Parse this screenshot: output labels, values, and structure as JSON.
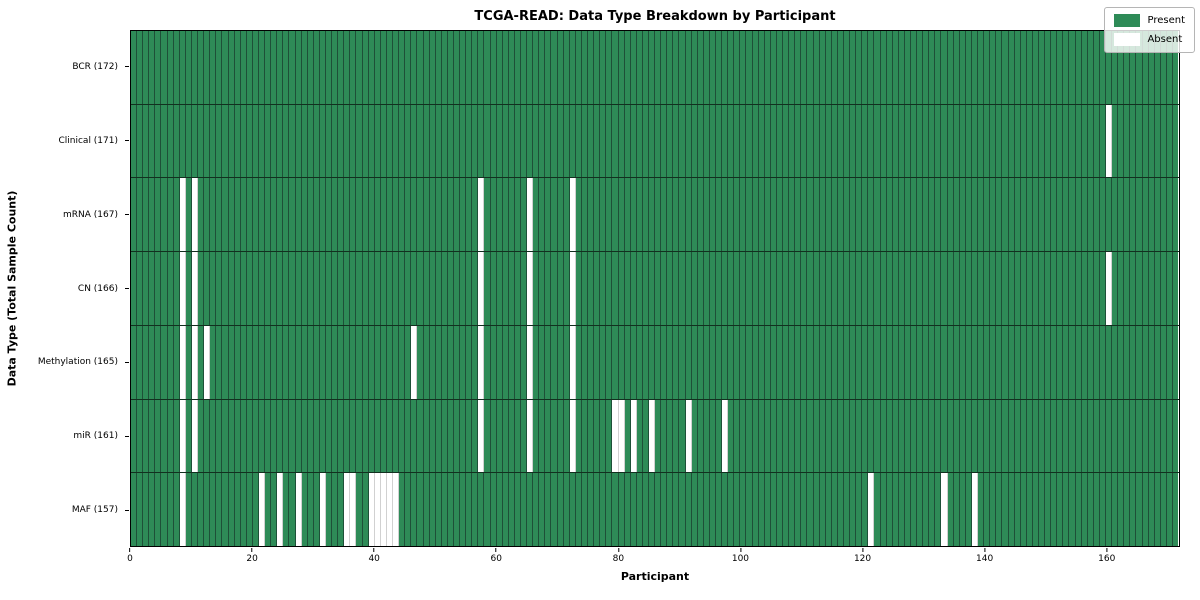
{
  "title": "TCGA-READ: Data Type Breakdown by Participant",
  "xlabel": "Participant",
  "ylabel": "Data Type (Total Sample Count)",
  "legend": {
    "present_label": "Present",
    "absent_label": "Absent"
  },
  "colors": {
    "present": "#2E8B57",
    "absent": "#FFFFFF",
    "cell_line": "#1E5038",
    "row_separator": "#12301F",
    "spine": "#000000",
    "background": "#FFFFFF",
    "legend_bg": "rgba(255,255,255,0.8)",
    "legend_border": "#B5B5B5",
    "text": "#000000"
  },
  "chart_data": {
    "type": "heatmap",
    "title": "TCGA-READ: Data Type Breakdown by Participant",
    "xlabel": "Participant",
    "ylabel": "Data Type (Total Sample Count)",
    "n_participants": 172,
    "x_range": [
      0,
      172
    ],
    "x_ticks": [
      0,
      20,
      40,
      60,
      80,
      100,
      120,
      140,
      160
    ],
    "legend_position": "upper right",
    "legend_entries": [
      "Present",
      "Absent"
    ],
    "grid": false,
    "rows": [
      {
        "label": "BCR (172)",
        "data_type": "BCR",
        "total_sample_count": 172,
        "absent_participants": []
      },
      {
        "label": "Clinical (171)",
        "data_type": "Clinical",
        "total_sample_count": 171,
        "absent_participants": [
          160
        ]
      },
      {
        "label": "mRNA (167)",
        "data_type": "mRNA",
        "total_sample_count": 167,
        "absent_participants": [
          8,
          10,
          57,
          65,
          72
        ]
      },
      {
        "label": "CN (166)",
        "data_type": "CN",
        "total_sample_count": 166,
        "absent_participants": [
          8,
          10,
          57,
          65,
          72,
          160
        ]
      },
      {
        "label": "Methylation (165)",
        "data_type": "Methylation",
        "total_sample_count": 165,
        "absent_participants": [
          8,
          10,
          12,
          46,
          57,
          65,
          72
        ]
      },
      {
        "label": "miR (161)",
        "data_type": "miR",
        "total_sample_count": 161,
        "absent_participants": [
          8,
          10,
          57,
          65,
          72,
          79,
          80,
          82,
          85,
          91,
          97
        ]
      },
      {
        "label": "MAF (157)",
        "data_type": "MAF",
        "total_sample_count": 157,
        "absent_participants": [
          8,
          21,
          24,
          27,
          31,
          35,
          36,
          39,
          40,
          41,
          42,
          43,
          121,
          133,
          138
        ]
      }
    ]
  }
}
